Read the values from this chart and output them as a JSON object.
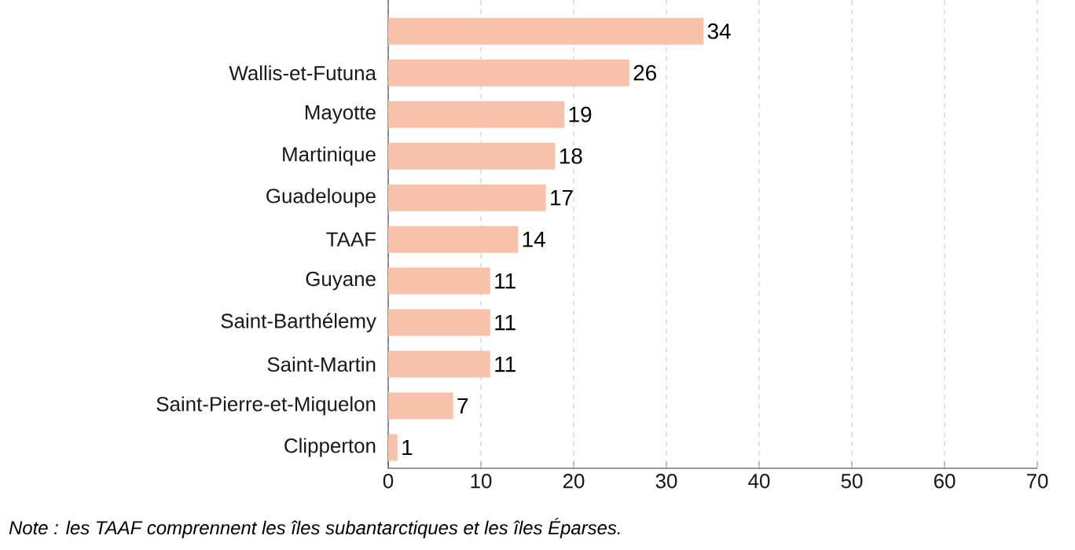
{
  "chart_data": {
    "type": "bar",
    "orientation": "horizontal",
    "categories": [
      null,
      "Wallis-et-Futuna",
      "Mayotte",
      "Martinique",
      "Guadeloupe",
      "TAAF",
      "Guyane",
      "Saint-Barthélemy",
      "Saint-Martin",
      "Saint-Pierre-et-Miquelon",
      "Clipperton"
    ],
    "values": [
      34,
      26,
      19,
      18,
      17,
      14,
      11,
      11,
      11,
      7,
      1
    ],
    "color": "#f7c1ab",
    "xlim": [
      0,
      70
    ],
    "xticks": [
      0,
      10,
      20,
      30,
      40,
      50,
      60,
      70
    ],
    "grid": "x",
    "data_labels": true,
    "annotations": [
      "Note : les TAAF comprennent les îles subantarctiques et les îles Éparses."
    ]
  }
}
